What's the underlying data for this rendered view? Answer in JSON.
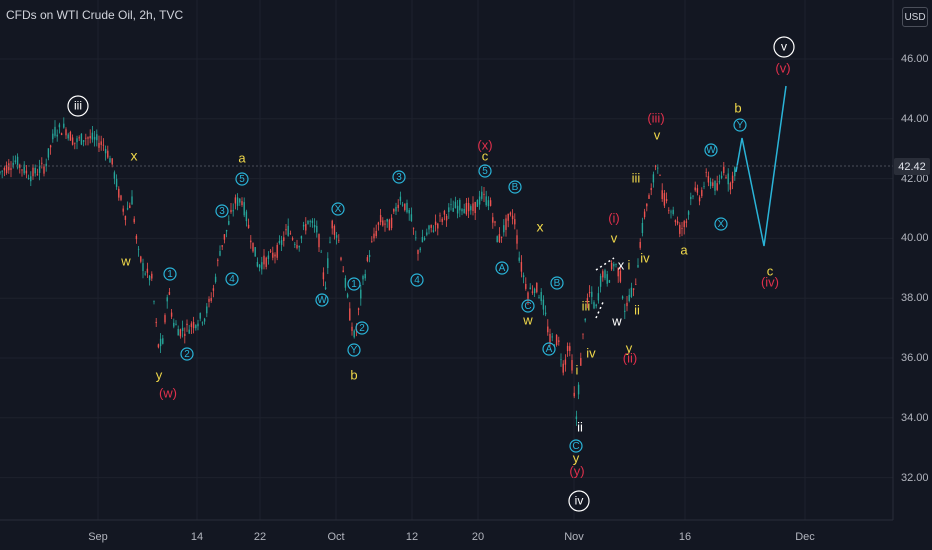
{
  "header": {
    "symbol_title": "CFDs on WTI Crude Oil, 2h, TVC",
    "currency": "USD"
  },
  "price_axis": {
    "ticks": [
      "46.00",
      "44.00",
      "42.00",
      "40.00",
      "38.00",
      "36.00",
      "34.00",
      "32.00"
    ],
    "last_price": "42.42"
  },
  "time_axis": {
    "ticks": [
      "Sep",
      "14",
      "22",
      "Oct",
      "12",
      "20",
      "Nov",
      "16",
      "Dec"
    ]
  },
  "colors": {
    "background": "#131722",
    "grid": "#1e222d",
    "wave_yellow": "#f0d84a",
    "wave_cyan": "#2ab4d8",
    "wave_red": "#e0304c",
    "wave_white": "#ffffff",
    "candle_up": "#26a69a",
    "candle_down": "#ef5350"
  },
  "wave_labels": {
    "iii_circ": "iii",
    "iv_circ": "iv",
    "v_circ": "v",
    "x1": "x",
    "w1": "w",
    "y1": "y",
    "w_paren": "(w)",
    "c1": "1",
    "c2": "2",
    "c3": "3",
    "c4": "4",
    "c5": "5",
    "a1": "a",
    "b1": "b",
    "c_W": "W",
    "c_X": "X",
    "c_Y": "Y",
    "x_paren": "(x)",
    "c_lbl": "c",
    "cA": "A",
    "cB": "B",
    "cC": "C",
    "w2": "w",
    "x2": "x",
    "y2": "y",
    "y_paren": "(y)",
    "ii": "ii",
    "i": "i",
    "iii": "iii",
    "iv": "iv",
    "v": "v",
    "i_paren": "(i)",
    "ii_paren": "(ii)",
    "iii_paren": "(iii)",
    "iv_paren": "(iv)",
    "v_paren": "(v)",
    "w3": "w",
    "x3": "x",
    "y3": "y"
  }
}
